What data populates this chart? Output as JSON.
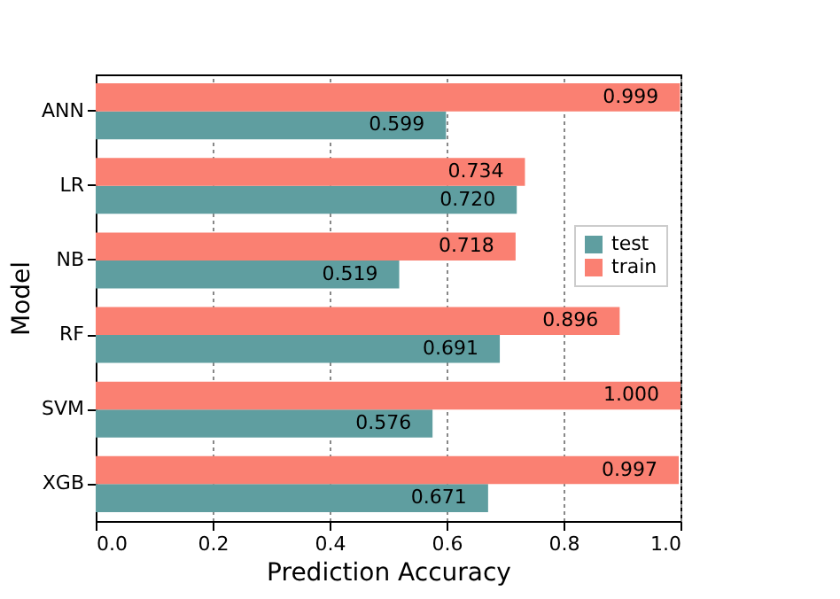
{
  "chart_data": {
    "type": "bar",
    "orientation": "horizontal",
    "xlabel": "Prediction Accuracy",
    "ylabel": "Model",
    "categories": [
      "ANN",
      "LR",
      "NB",
      "RF",
      "SVM",
      "XGB"
    ],
    "series": [
      {
        "name": "test",
        "color": "#5f9ea0",
        "values": [
          0.599,
          0.72,
          0.519,
          0.691,
          0.576,
          0.671
        ],
        "value_labels": [
          "0.599",
          "0.720",
          "0.519",
          "0.691",
          "0.576",
          "0.671"
        ]
      },
      {
        "name": "train",
        "color": "#fa8072",
        "values": [
          0.999,
          0.734,
          0.718,
          0.896,
          1.0,
          0.997
        ],
        "value_labels": [
          "0.999",
          "0.734",
          "0.718",
          "0.896",
          "1.000",
          "0.997"
        ]
      }
    ],
    "xlim": [
      0,
      1
    ],
    "xticks": [
      {
        "value": 0,
        "label": "0.0"
      },
      0.2,
      0.4,
      0.6,
      0.8,
      {
        "value": 1,
        "label": "1.0"
      }
    ],
    "grid": "x",
    "legend": "right"
  }
}
